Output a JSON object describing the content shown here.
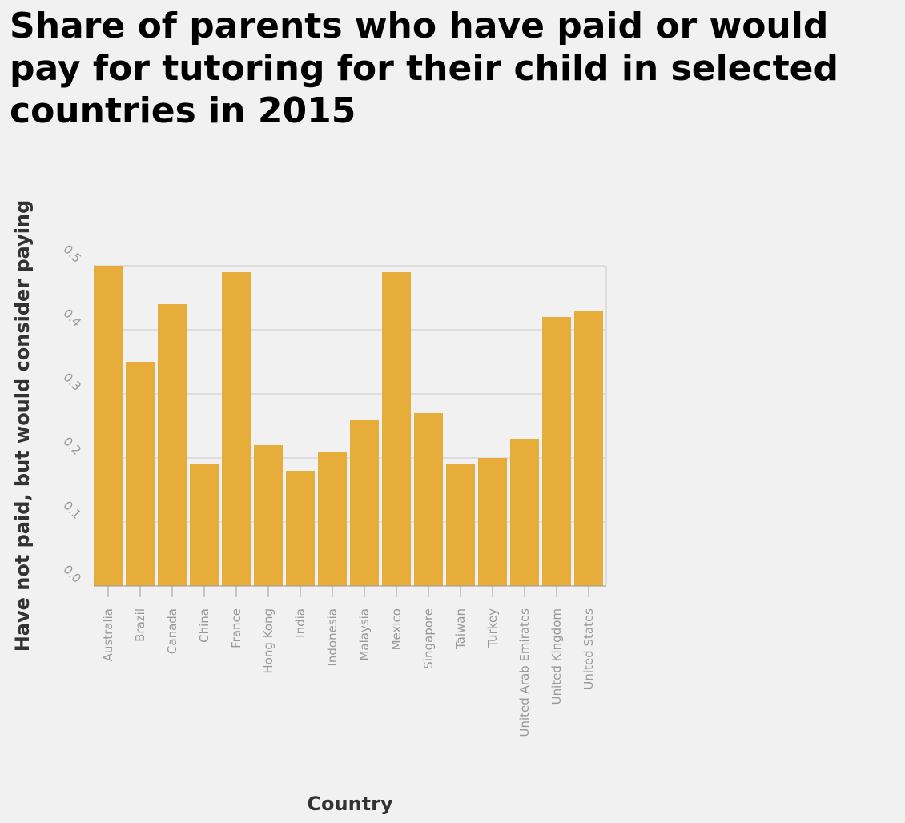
{
  "chart_data": {
    "type": "bar",
    "title": "Share of parents who have paid or would pay for tutoring for their child in selected countries in 2015",
    "xlabel": "Country",
    "ylabel": "Have not paid, but would consider paying",
    "categories": [
      "Australia",
      "Brazil",
      "Canada",
      "China",
      "France",
      "Hong Kong",
      "India",
      "Indonesia",
      "Malaysia",
      "Mexico",
      "Singapore",
      "Taiwan",
      "Turkey",
      "United Arab Emirates",
      "United Kingdom",
      "United States"
    ],
    "values": [
      0.5,
      0.35,
      0.44,
      0.19,
      0.49,
      0.22,
      0.18,
      0.21,
      0.26,
      0.49,
      0.27,
      0.19,
      0.2,
      0.23,
      0.42,
      0.43
    ],
    "ylim": [
      0,
      0.5
    ],
    "yticks": [
      "0.0",
      "0.1",
      "0.2",
      "0.3",
      "0.4",
      "0.5"
    ],
    "grid": true,
    "legend": "none",
    "bar_color": "#e6ad3a",
    "grid_color": "#cccccc",
    "background_color": "#f1f1f1"
  }
}
